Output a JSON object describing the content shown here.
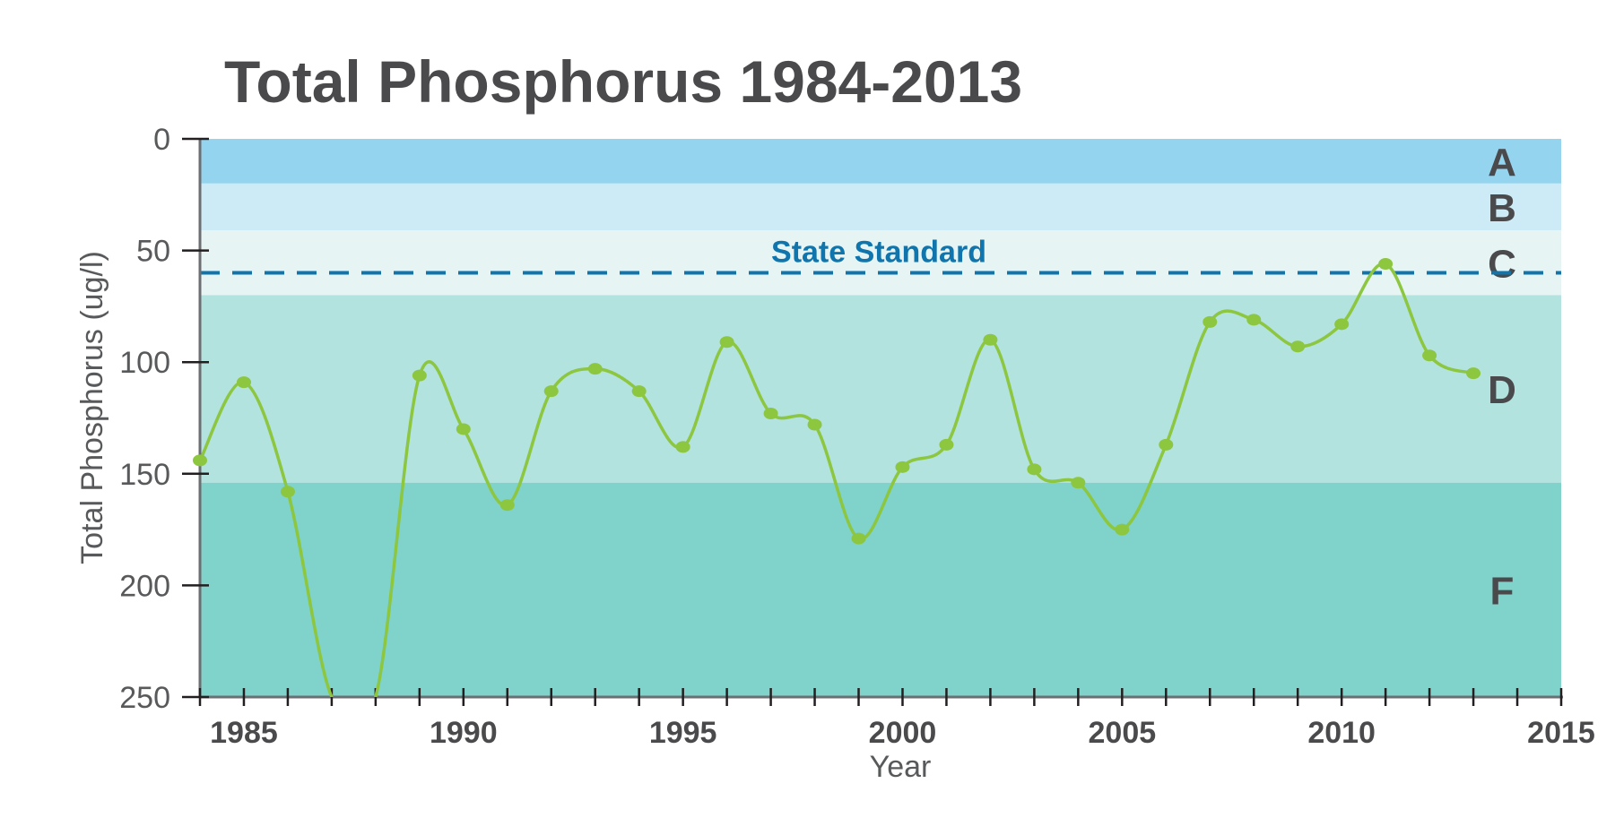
{
  "chart_data": {
    "type": "line",
    "title": "Total Phosphorus 1984-2013",
    "xlabel": "Year",
    "ylabel": "Total Phosphorus (ug/l)",
    "xlim": [
      1984,
      2015
    ],
    "ylim": [
      0,
      250
    ],
    "y_inverted": true,
    "x_ticks": [
      1985,
      1990,
      1995,
      2000,
      2005,
      2010,
      2015
    ],
    "y_ticks": [
      0,
      50,
      100,
      150,
      200,
      250
    ],
    "series": [
      {
        "color": "#8dc63f",
        "x": [
          1984,
          1985,
          1986,
          1987,
          1988,
          1989,
          1990,
          1991,
          1992,
          1993,
          1994,
          1995,
          1996,
          1997,
          1998,
          1999,
          2000,
          2001,
          2002,
          2003,
          2004,
          2005,
          2006,
          2007,
          2008,
          2009,
          2010,
          2011,
          2012,
          2013
        ],
        "y": [
          144,
          109,
          158,
          250,
          250,
          106,
          130,
          164,
          113,
          103,
          113,
          138,
          91,
          123,
          128,
          179,
          147,
          137,
          90,
          148,
          154,
          175,
          137,
          82,
          81,
          93,
          83,
          56,
          97,
          105
        ]
      }
    ],
    "bands": [
      {
        "label": "A",
        "from": 0,
        "to": 20,
        "color": "#95d4ee"
      },
      {
        "label": "B",
        "from": 20,
        "to": 41,
        "color": "#cdebf6"
      },
      {
        "label": "C",
        "from": 41,
        "to": 70,
        "color": "#e6f4f3"
      },
      {
        "label": "D",
        "from": 70,
        "to": 154,
        "color": "#b2e3df"
      },
      {
        "label": "F",
        "from": 154,
        "to": 250,
        "color": "#7fd3cb"
      }
    ],
    "reference_line": {
      "label": "State Standard",
      "value": 60,
      "color": "#0f75ac"
    },
    "grid": false,
    "legend": "none"
  }
}
